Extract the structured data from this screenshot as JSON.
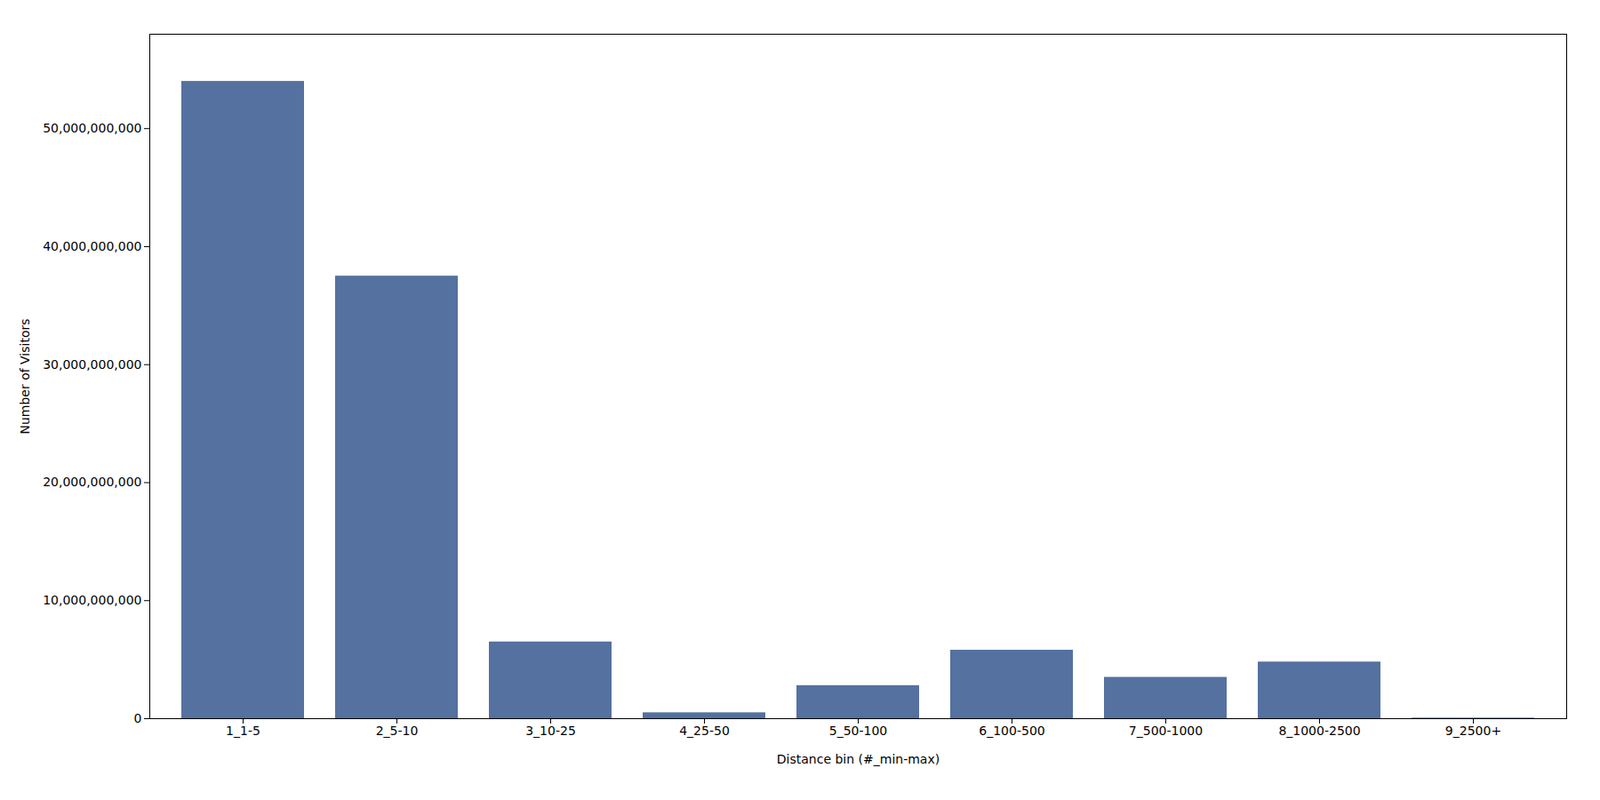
{
  "chart_data": {
    "type": "bar",
    "categories": [
      "1_1-5",
      "2_5-10",
      "3_10-25",
      "4_25-50",
      "5_50-100",
      "6_100-500",
      "7_500-1000",
      "8_1000-2500",
      "9_2500+"
    ],
    "values": [
      54000000000,
      37500000000,
      6500000000,
      500000000,
      2800000000,
      5800000000,
      3500000000,
      4800000000,
      50000000
    ],
    "color": "#5471a0",
    "xlabel": "Distance bin (#_min-max)",
    "ylabel": "Number of Visitors",
    "ylim": [
      0,
      58000000000
    ],
    "yticks": [
      0,
      {
        "value": 10000000000,
        "label": "10,000,000,000"
      },
      {
        "value": 20000000000,
        "label": "20,000,000,000"
      },
      {
        "value": 30000000000,
        "label": "30,000,000,000"
      },
      {
        "value": 40000000000,
        "label": "40,000,000,000"
      },
      {
        "value": 50000000000,
        "label": "50,000,000,000"
      }
    ],
    "grid": false
  }
}
